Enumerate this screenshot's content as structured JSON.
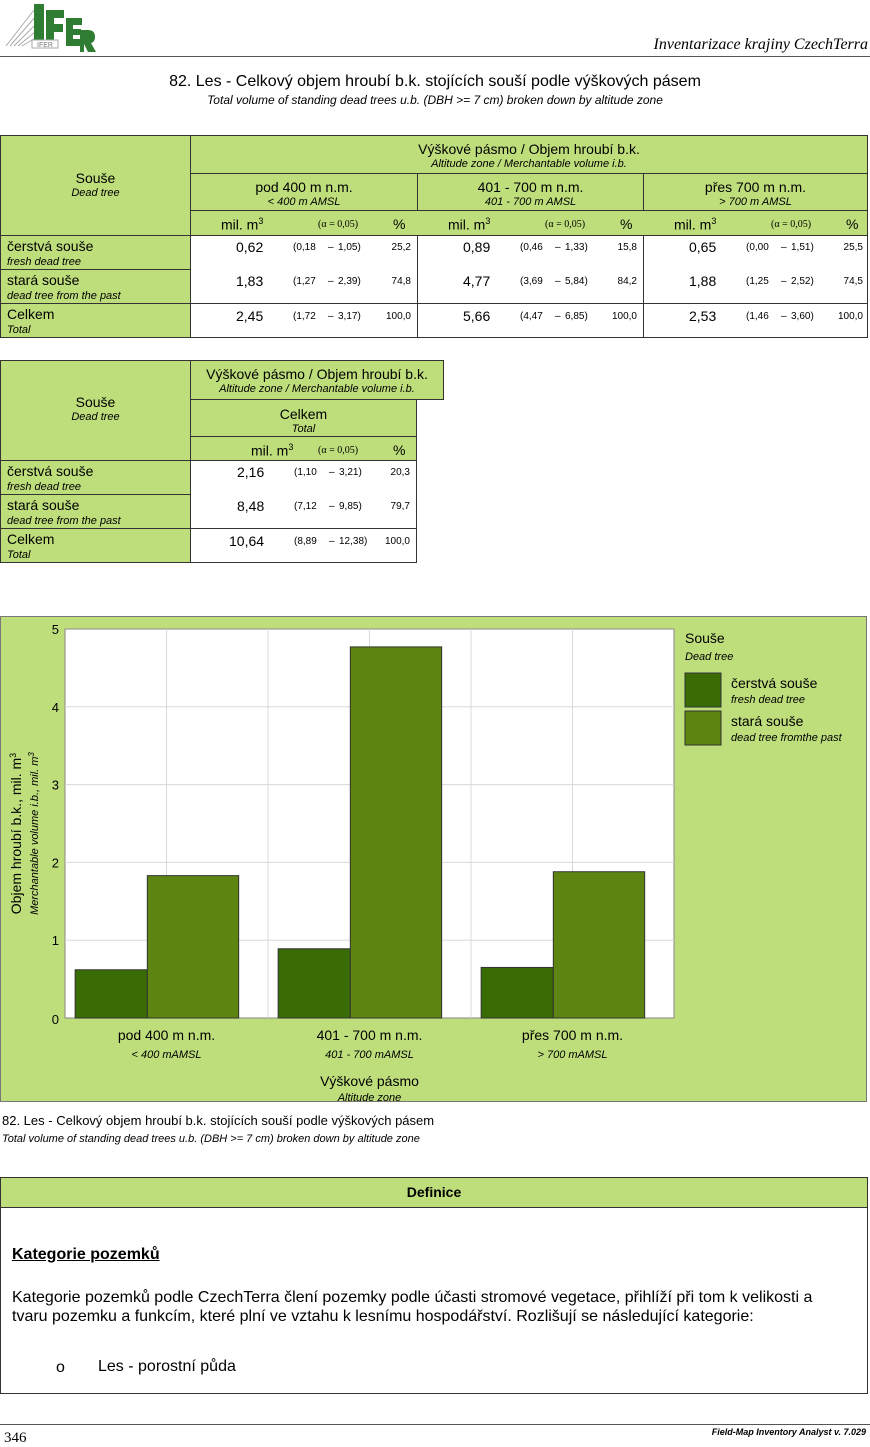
{
  "header": {
    "logo_text": "IFER",
    "title": "Inventarizace krajiny CzechTerra"
  },
  "report": {
    "title_cz": "82. Les - Celkový objem hroubí b.k. stojících souší podle výškových pásem",
    "title_en": "Total volume of standing dead trees u.b. (DBH >= 7 cm) broken down by altitude zone"
  },
  "table1": {
    "row_header_cz": "Souše",
    "row_header_en": "Dead tree",
    "group_header_cz": "Výškové pásmo / Objem hroubí b.k.",
    "group_header_en": "Altitude zone / Merchantable volume i.b.",
    "zones": [
      {
        "cz": "pod 400 m n.m.",
        "en": "< 400 m AMSL"
      },
      {
        "cz": "401 - 700 m n.m.",
        "en": "401 - 700 m AMSL"
      },
      {
        "cz": "přes 700 m n.m.",
        "en": "> 700 m AMSL"
      }
    ],
    "unit_label": "mil. m",
    "unit_sup": "3",
    "alpha_label": "(α = 0,05)",
    "pct_label": "%",
    "rows": [
      {
        "cz": "čerstvá souše",
        "en": "fresh dead tree",
        "cells": [
          {
            "v": "0,62",
            "lo": "(0,18",
            "dash": "–",
            "hi": "1,05)",
            "p": "25,2"
          },
          {
            "v": "0,89",
            "lo": "(0,46",
            "dash": "–",
            "hi": "1,33)",
            "p": "15,8"
          },
          {
            "v": "0,65",
            "lo": "(0,00",
            "dash": "–",
            "hi": "1,51)",
            "p": "25,5"
          }
        ]
      },
      {
        "cz": "stará souše",
        "en": "dead tree from the past",
        "cells": [
          {
            "v": "1,83",
            "lo": "(1,27",
            "dash": "–",
            "hi": "2,39)",
            "p": "74,8"
          },
          {
            "v": "4,77",
            "lo": "(3,69",
            "dash": "–",
            "hi": "5,84)",
            "p": "84,2"
          },
          {
            "v": "1,88",
            "lo": "(1,25",
            "dash": "–",
            "hi": "2,52)",
            "p": "74,5"
          }
        ]
      },
      {
        "cz": "Celkem",
        "en": "Total",
        "cells": [
          {
            "v": "2,45",
            "lo": "(1,72",
            "dash": "–",
            "hi": "3,17)",
            "p": "100,0"
          },
          {
            "v": "5,66",
            "lo": "(4,47",
            "dash": "–",
            "hi": "6,85)",
            "p": "100,0"
          },
          {
            "v": "2,53",
            "lo": "(1,46",
            "dash": "–",
            "hi": "3,60)",
            "p": "100,0"
          }
        ]
      }
    ]
  },
  "table2": {
    "row_header_cz": "Souše",
    "row_header_en": "Dead tree",
    "group_header_cz": "Výškové pásmo / Objem hroubí b.k.",
    "group_header_en": "Altitude zone / Merchantable volume i.b.",
    "total_cz": "Celkem",
    "total_en": "Total",
    "unit_label": "mil. m",
    "unit_sup": "3",
    "alpha_label": "(α = 0,05)",
    "pct_label": "%",
    "rows": [
      {
        "cz": "čerstvá souše",
        "en": "fresh dead tree",
        "v": "2,16",
        "lo": "(1,10",
        "dash": "–",
        "hi": "3,21)",
        "p": "20,3"
      },
      {
        "cz": "stará souše",
        "en": "dead tree from the past",
        "v": "8,48",
        "lo": "(7,12",
        "dash": "–",
        "hi": "9,85)",
        "p": "79,7"
      },
      {
        "cz": "Celkem",
        "en": "Total",
        "v": "10,64",
        "lo": "(8,89",
        "dash": "–",
        "hi": "12,38)",
        "p": "100,0"
      }
    ]
  },
  "chart_data": {
    "type": "bar",
    "categories": [
      "pod 400 m n.m.",
      "401 - 700 m n.m.",
      "přes 700 m n.m."
    ],
    "categories_en": [
      "< 400 mAMSL",
      "401 - 700 mAMSL",
      "> 700 mAMSL"
    ],
    "series": [
      {
        "name": "čerstvá souše",
        "name_en": "fresh dead tree",
        "color": "#3a6c05",
        "values": [
          0.62,
          0.89,
          0.65
        ]
      },
      {
        "name": "stará souše",
        "name_en": "dead tree fromthe past",
        "color": "#5e8512",
        "values": [
          1.83,
          4.77,
          1.88
        ]
      }
    ],
    "xlabel": "Výškové pásmo",
    "xlabel_en": "Altitude zone",
    "ylabel": "Objem hroubí b.k., mil. m",
    "ylabel_sup": "3",
    "ylabel_en": "Merchantable volume i.b., mil. m",
    "ylabel_en_sup": "3",
    "ylim": [
      0,
      5
    ],
    "yticks": [
      "0",
      "1",
      "2",
      "3",
      "4",
      "5"
    ],
    "grid": true,
    "legend_title": "Souše",
    "legend_title_en": "Dead tree",
    "legend_position": "right",
    "plot_background": "#ffffff",
    "panel_background": "#bede7c"
  },
  "caption": {
    "cz": "82. Les - Celkový objem hroubí b.k. stojících souší podle výškových pásem",
    "en": "Total volume of standing dead trees u.b. (DBH >= 7 cm) broken down by altitude zone"
  },
  "definition": {
    "header": "Definice",
    "heading": "Kategorie pozemků",
    "paragraph": "Kategorie pozemků podle CzechTerra člení pozemky podle účasti stromové vegetace, přihlíží při tom k velikosti a tvaru pozemku a funkcím, které plní ve vztahu k lesnímu hospodářství. Rozlišují se následující kategorie:",
    "bullet_marker": "o",
    "bullet_item": "Les - porostní půda"
  },
  "footer": {
    "page_number": "346",
    "software": "Field-Map Inventory Analyst v. 7.029"
  }
}
